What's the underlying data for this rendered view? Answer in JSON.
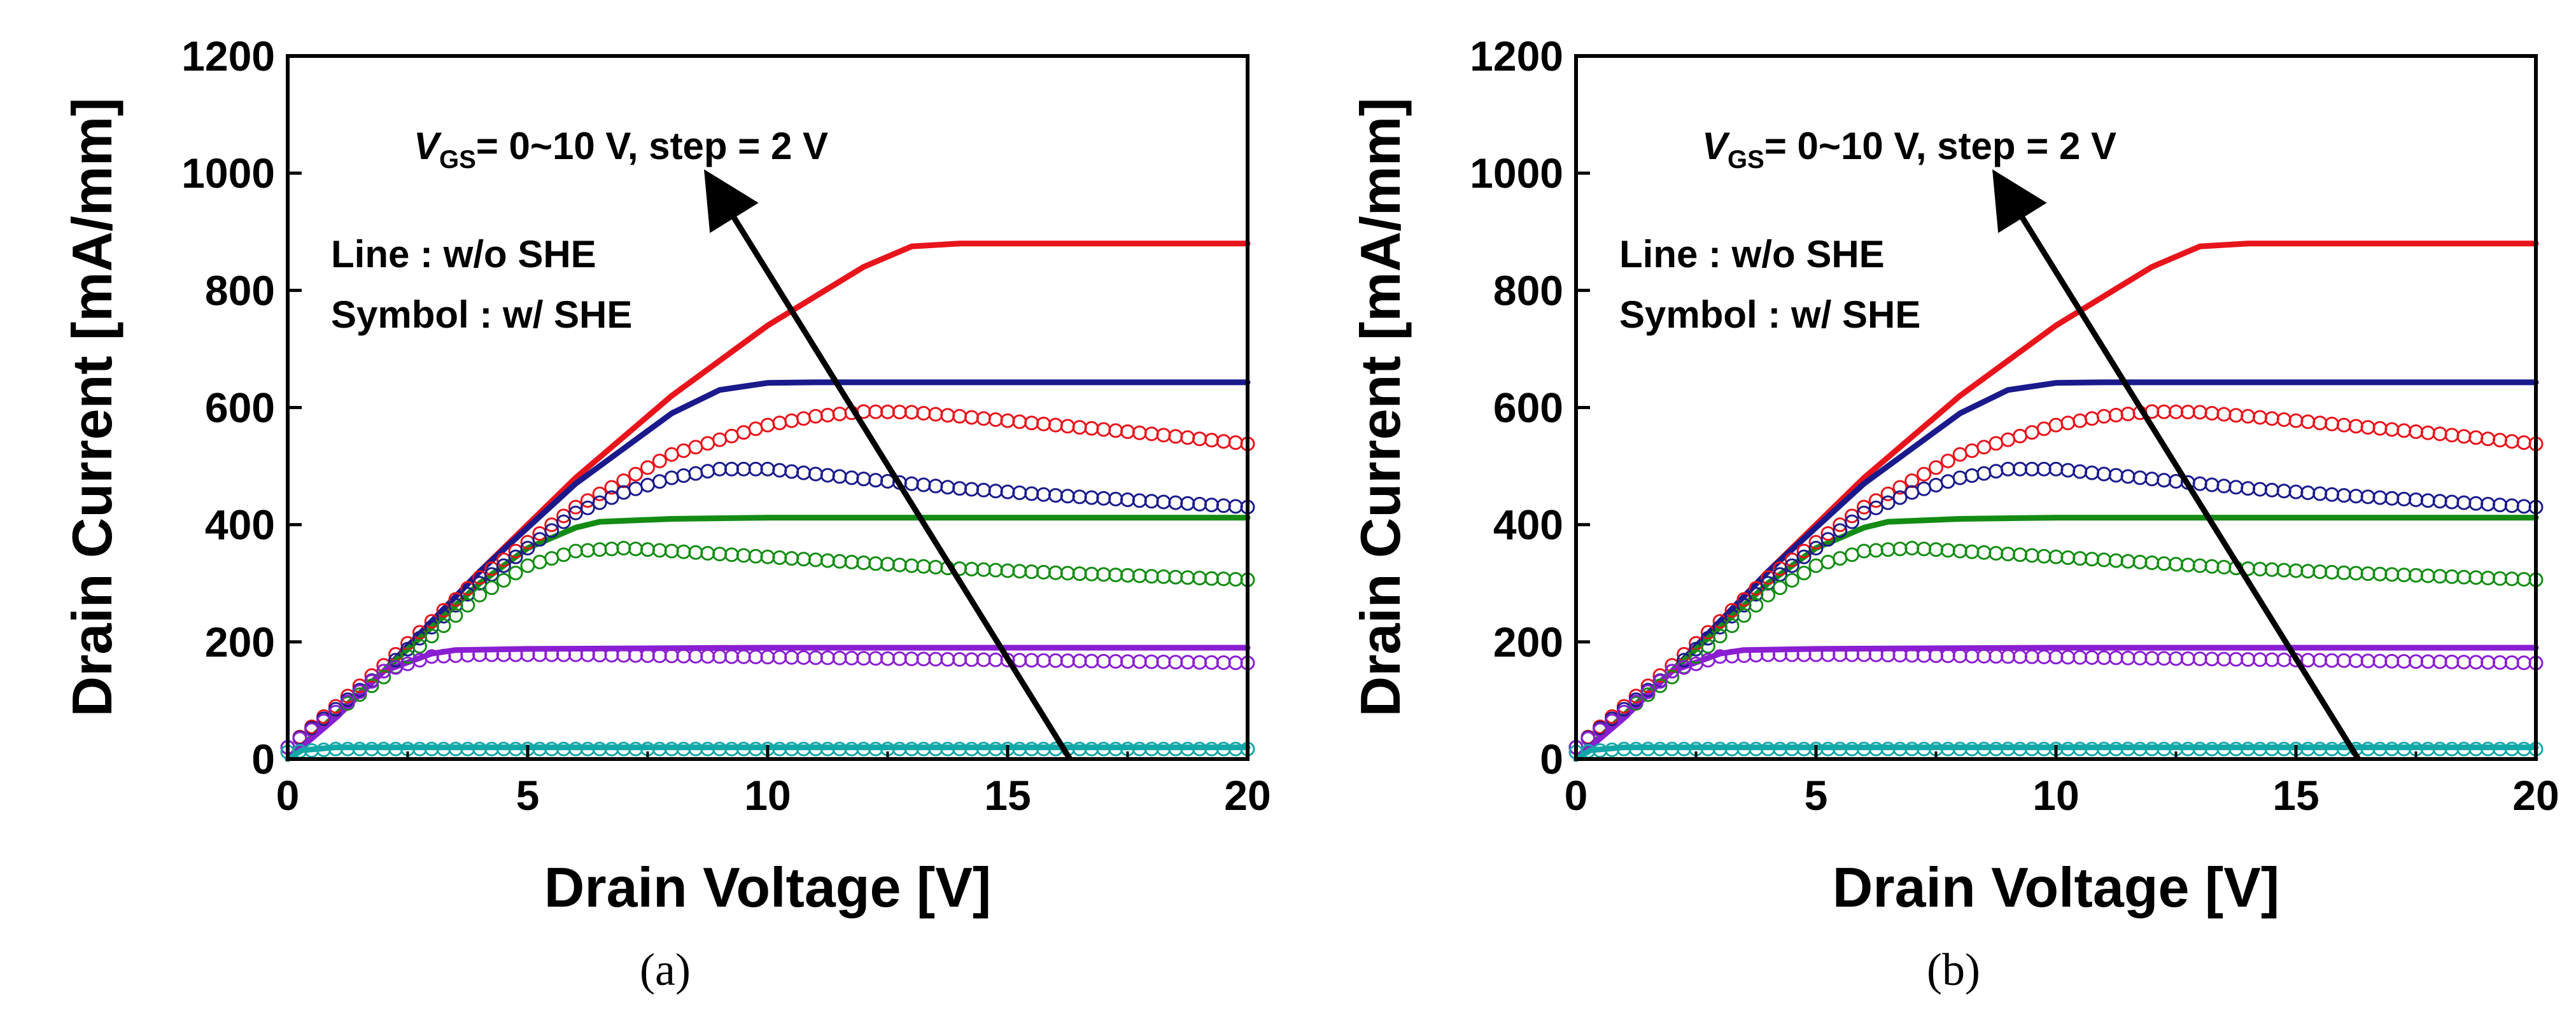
{
  "chart_data": [
    {
      "type": "line",
      "caption": "(a)",
      "xlabel": "Drain Voltage [V]",
      "ylabel": "Drain Current [mA/mm]",
      "xlim": [
        0,
        20
      ],
      "ylim": [
        0,
        1200
      ],
      "xticks": [
        "0",
        "5",
        "10",
        "15",
        "20"
      ],
      "yticks": [
        "0",
        "200",
        "400",
        "600",
        "800",
        "1000",
        "1200"
      ],
      "annotation": {
        "v_symbol": "V",
        "v_subscript": "GS",
        "text": "= 0~10 V, step = 2 V"
      },
      "legend_line": "Line : w/o SHE",
      "legend_symbol": "Symbol : w/ SHE",
      "arrow": {
        "from": [
          16.3,
          0
        ],
        "to": [
          8.8,
          990
        ]
      },
      "series": [
        {
          "name": "V_GS = 10 V w/o SHE",
          "style": "line",
          "color": "#e8141b",
          "x": [
            0,
            2,
            4,
            6,
            8,
            10,
            11,
            12,
            13,
            14,
            16,
            18,
            20
          ],
          "y": [
            0,
            150,
            320,
            480,
            620,
            740,
            790,
            840,
            875,
            880,
            880,
            880,
            880
          ]
        },
        {
          "name": "V_GS = 8 V w/o SHE",
          "style": "line",
          "color": "#1a1a8c",
          "x": [
            0,
            2,
            4,
            6,
            8,
            9,
            10,
            11,
            12,
            14,
            16,
            18,
            20
          ],
          "y": [
            0,
            150,
            320,
            470,
            590,
            630,
            642,
            643,
            643,
            643,
            643,
            643,
            643
          ]
        },
        {
          "name": "V_GS = 6 V w/o SHE",
          "style": "line",
          "color": "#148c14",
          "x": [
            0,
            2,
            4,
            5,
            6,
            6.5,
            8,
            10,
            12,
            14,
            16,
            18,
            20
          ],
          "y": [
            0,
            150,
            300,
            360,
            395,
            405,
            410,
            412,
            412,
            412,
            412,
            412,
            412
          ]
        },
        {
          "name": "V_GS = 4 V w/o SHE",
          "style": "line",
          "color": "#8a1ed2",
          "x": [
            0,
            1,
            2,
            3,
            3.5,
            5,
            10,
            15,
            20
          ],
          "y": [
            0,
            70,
            150,
            180,
            186,
            188,
            190,
            190,
            190
          ]
        },
        {
          "name": "V_GS = 2 V w/o SHE",
          "style": "line",
          "color": "#12a8a8",
          "x": [
            0,
            0.3,
            1,
            5,
            10,
            15,
            20
          ],
          "y": [
            0,
            15,
            20,
            20,
            20,
            20,
            20
          ]
        },
        {
          "name": "V_GS = 10 V w/ SHE",
          "style": "symbol",
          "color": "#e8141b",
          "x": [
            0,
            2,
            4,
            6,
            8,
            10,
            11,
            12,
            13,
            14,
            16,
            18,
            20
          ],
          "y": [
            20,
            160,
            310,
            430,
            520,
            570,
            585,
            593,
            592,
            585,
            570,
            555,
            538
          ]
        },
        {
          "name": "V_GS = 8 V w/ SHE",
          "style": "symbol",
          "color": "#1a1a8c",
          "x": [
            0,
            2,
            4,
            6,
            7,
            8,
            9,
            10,
            12,
            14,
            16,
            18,
            20
          ],
          "y": [
            20,
            150,
            300,
            420,
            455,
            480,
            495,
            495,
            478,
            462,
            450,
            440,
            430
          ]
        },
        {
          "name": "V_GS = 6 V w/ SHE",
          "style": "symbol",
          "color": "#148c14",
          "x": [
            0,
            2,
            4,
            5,
            6,
            7,
            8,
            10,
            12,
            14,
            16,
            18,
            20
          ],
          "y": [
            20,
            140,
            280,
            330,
            355,
            360,
            355,
            345,
            335,
            325,
            318,
            312,
            306
          ]
        },
        {
          "name": "V_GS = 4 V w/ SHE",
          "style": "symbol",
          "color": "#8a1ed2",
          "x": [
            0,
            1,
            2,
            3,
            4,
            6,
            8,
            10,
            12,
            14,
            16,
            18,
            20
          ],
          "y": [
            20,
            80,
            150,
            175,
            178,
            178,
            176,
            174,
            172,
            170,
            168,
            166,
            164
          ]
        },
        {
          "name": "V_GS = 2 V w/ SHE",
          "style": "symbol",
          "color": "#12a8a8",
          "x": [
            0,
            1,
            5,
            10,
            15,
            20
          ],
          "y": [
            12,
            17,
            17,
            17,
            17,
            17
          ]
        }
      ]
    },
    {
      "type": "line",
      "caption": "(b)",
      "xlabel": "Drain Voltage [V]",
      "ylabel": "Drain Current [mA/mm]",
      "xlim": [
        0,
        20
      ],
      "ylim": [
        0,
        1200
      ],
      "xticks": [
        "0",
        "5",
        "10",
        "15",
        "20"
      ],
      "yticks": [
        "0",
        "200",
        "400",
        "600",
        "800",
        "1000",
        "1200"
      ],
      "annotation": {
        "v_symbol": "V",
        "v_subscript": "GS",
        "text": "= 0~10 V, step = 2 V"
      },
      "legend_line": "Line : w/o SHE",
      "legend_symbol": "Symbol : w/ SHE",
      "arrow": {
        "from": [
          16.3,
          0
        ],
        "to": [
          8.8,
          990
        ]
      },
      "series": [
        {
          "name": "V_GS = 10 V w/o SHE",
          "style": "line",
          "color": "#e8141b",
          "x": [
            0,
            2,
            4,
            6,
            8,
            10,
            11,
            12,
            13,
            14,
            16,
            18,
            20
          ],
          "y": [
            0,
            150,
            320,
            480,
            620,
            740,
            790,
            840,
            875,
            880,
            880,
            880,
            880
          ]
        },
        {
          "name": "V_GS = 8 V w/o SHE",
          "style": "line",
          "color": "#1a1a8c",
          "x": [
            0,
            2,
            4,
            6,
            8,
            9,
            10,
            11,
            12,
            14,
            16,
            18,
            20
          ],
          "y": [
            0,
            150,
            320,
            470,
            590,
            630,
            642,
            643,
            643,
            643,
            643,
            643,
            643
          ]
        },
        {
          "name": "V_GS = 6 V w/o SHE",
          "style": "line",
          "color": "#148c14",
          "x": [
            0,
            2,
            4,
            5,
            6,
            6.5,
            8,
            10,
            12,
            14,
            16,
            18,
            20
          ],
          "y": [
            0,
            150,
            300,
            360,
            395,
            405,
            410,
            412,
            412,
            412,
            412,
            412,
            412
          ]
        },
        {
          "name": "V_GS = 4 V w/o SHE",
          "style": "line",
          "color": "#8a1ed2",
          "x": [
            0,
            1,
            2,
            3,
            3.5,
            5,
            10,
            15,
            20
          ],
          "y": [
            0,
            70,
            150,
            180,
            186,
            188,
            190,
            190,
            190
          ]
        },
        {
          "name": "V_GS = 2 V w/o SHE",
          "style": "line",
          "color": "#12a8a8",
          "x": [
            0,
            0.3,
            1,
            5,
            10,
            15,
            20
          ],
          "y": [
            0,
            15,
            20,
            20,
            20,
            20,
            20
          ]
        },
        {
          "name": "V_GS = 10 V w/ SHE",
          "style": "symbol",
          "color": "#e8141b",
          "x": [
            0,
            2,
            4,
            6,
            8,
            10,
            11,
            12,
            13,
            14,
            16,
            18,
            20
          ],
          "y": [
            20,
            160,
            310,
            430,
            520,
            570,
            585,
            593,
            592,
            585,
            570,
            555,
            538
          ]
        },
        {
          "name": "V_GS = 8 V w/ SHE",
          "style": "symbol",
          "color": "#1a1a8c",
          "x": [
            0,
            2,
            4,
            6,
            7,
            8,
            9,
            10,
            12,
            14,
            16,
            18,
            20
          ],
          "y": [
            20,
            150,
            300,
            420,
            455,
            480,
            495,
            495,
            478,
            462,
            450,
            440,
            430
          ]
        },
        {
          "name": "V_GS = 6 V w/ SHE",
          "style": "symbol",
          "color": "#148c14",
          "x": [
            0,
            2,
            4,
            5,
            6,
            7,
            8,
            10,
            12,
            14,
            16,
            18,
            20
          ],
          "y": [
            20,
            140,
            280,
            330,
            355,
            360,
            355,
            345,
            335,
            325,
            318,
            312,
            306
          ]
        },
        {
          "name": "V_GS = 4 V w/ SHE",
          "style": "symbol",
          "color": "#8a1ed2",
          "x": [
            0,
            1,
            2,
            3,
            4,
            6,
            8,
            10,
            12,
            14,
            16,
            18,
            20
          ],
          "y": [
            20,
            80,
            150,
            175,
            178,
            178,
            176,
            174,
            172,
            170,
            168,
            166,
            164
          ]
        },
        {
          "name": "V_GS = 2 V w/ SHE",
          "style": "symbol",
          "color": "#12a8a8",
          "x": [
            0,
            1,
            5,
            10,
            15,
            20
          ],
          "y": [
            12,
            17,
            17,
            17,
            17,
            17
          ]
        }
      ]
    }
  ]
}
